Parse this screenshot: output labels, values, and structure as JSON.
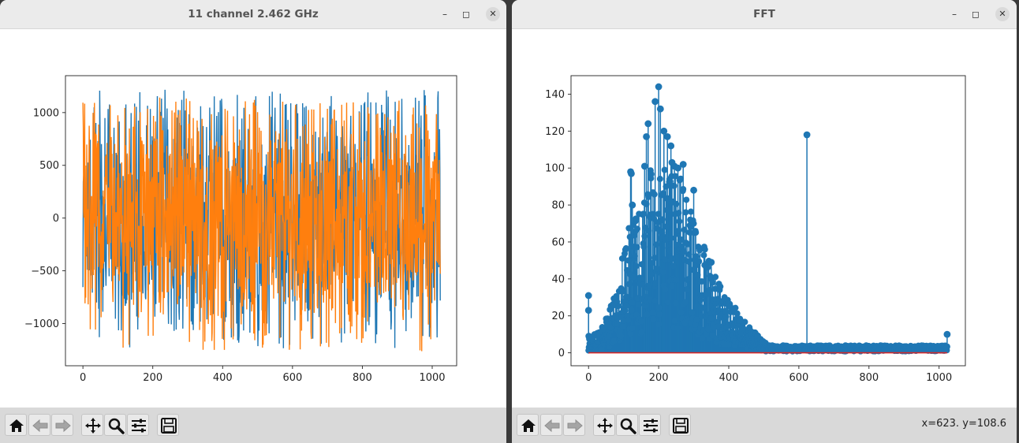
{
  "windows": {
    "left": {
      "title": "11 channel 2.462 GHz",
      "controls": {
        "minimize": "–",
        "maximize": "◻",
        "close": "✕"
      }
    },
    "right": {
      "title": "FFT",
      "controls": {
        "minimize": "–",
        "maximize": "◻",
        "close": "✕"
      }
    }
  },
  "toolbar": {
    "icons": [
      "home-icon",
      "back-arrow-icon",
      "forward-arrow-icon",
      "pan-icon",
      "zoom-icon",
      "configure-subplots-icon",
      "save-icon"
    ],
    "status_text": "x=623. y=108.6"
  },
  "colors": {
    "blue": "#1f77b4",
    "orange": "#ff7f0e",
    "red": "#d62728"
  },
  "chart_data": [
    {
      "type": "line",
      "title": "",
      "xlabel": "",
      "ylabel": "",
      "xlim": [
        -50,
        1070
      ],
      "ylim": [
        -1400,
        1350
      ],
      "x_ticks": [
        0,
        200,
        400,
        600,
        800,
        1000
      ],
      "y_ticks": [
        -1000,
        -500,
        0,
        500,
        1000
      ],
      "x_tick_labels": [
        "0",
        "200",
        "400",
        "600",
        "800",
        "1000"
      ],
      "y_tick_labels": [
        "−1000",
        "−500",
        "0",
        "500",
        "1000"
      ],
      "n_points": 1024,
      "grid": false,
      "series": [
        {
          "color": "#1f77b4",
          "amplitude_range": [
            -1240,
            1230
          ],
          "note_values": "dense noise signal, 1024 samples"
        },
        {
          "color": "#ff7f0e",
          "amplitude_range": [
            -1270,
            1200
          ],
          "note_values": "dense noise signal, 1024 samples"
        }
      ]
    },
    {
      "type": "stem",
      "title": "",
      "xlabel": "",
      "ylabel": "",
      "xlim": [
        -50,
        1075
      ],
      "ylim": [
        -7,
        150
      ],
      "x_ticks": [
        0,
        200,
        400,
        600,
        800,
        1000
      ],
      "y_ticks": [
        0,
        20,
        40,
        60,
        80,
        100,
        120,
        140
      ],
      "x_tick_labels": [
        "0",
        "200",
        "400",
        "600",
        "800",
        "1000"
      ],
      "y_tick_labels": [
        "0",
        "20",
        "40",
        "60",
        "80",
        "100",
        "120",
        "140"
      ],
      "grid": false,
      "baseline": 0,
      "n_points": 1024,
      "peaks": [
        {
          "x": 0,
          "y": 31
        },
        {
          "x": 0,
          "y": 23
        },
        {
          "x": 1,
          "y": 9
        },
        {
          "x": 120,
          "y": 98
        },
        {
          "x": 122,
          "y": 97
        },
        {
          "x": 125,
          "y": 80
        },
        {
          "x": 160,
          "y": 101
        },
        {
          "x": 165,
          "y": 117
        },
        {
          "x": 170,
          "y": 124
        },
        {
          "x": 190,
          "y": 136
        },
        {
          "x": 200,
          "y": 144
        },
        {
          "x": 205,
          "y": 132
        },
        {
          "x": 215,
          "y": 120
        },
        {
          "x": 225,
          "y": 117
        },
        {
          "x": 235,
          "y": 112
        },
        {
          "x": 238,
          "y": 103
        },
        {
          "x": 245,
          "y": 101
        },
        {
          "x": 255,
          "y": 100
        },
        {
          "x": 270,
          "y": 102
        },
        {
          "x": 300,
          "y": 88
        },
        {
          "x": 350,
          "y": 49
        },
        {
          "x": 623,
          "y": 118
        },
        {
          "x": 1023,
          "y": 10
        }
      ],
      "envelope": [
        {
          "x": 0,
          "y": 6
        },
        {
          "x": 40,
          "y": 12
        },
        {
          "x": 80,
          "y": 28
        },
        {
          "x": 100,
          "y": 50
        },
        {
          "x": 120,
          "y": 60
        },
        {
          "x": 150,
          "y": 68
        },
        {
          "x": 180,
          "y": 85
        },
        {
          "x": 210,
          "y": 90
        },
        {
          "x": 240,
          "y": 82
        },
        {
          "x": 270,
          "y": 78
        },
        {
          "x": 300,
          "y": 60
        },
        {
          "x": 340,
          "y": 45
        },
        {
          "x": 380,
          "y": 30
        },
        {
          "x": 420,
          "y": 20
        },
        {
          "x": 460,
          "y": 12
        },
        {
          "x": 500,
          "y": 5
        },
        {
          "x": 540,
          "y": 2.5
        },
        {
          "x": 1023,
          "y": 3
        }
      ]
    }
  ]
}
